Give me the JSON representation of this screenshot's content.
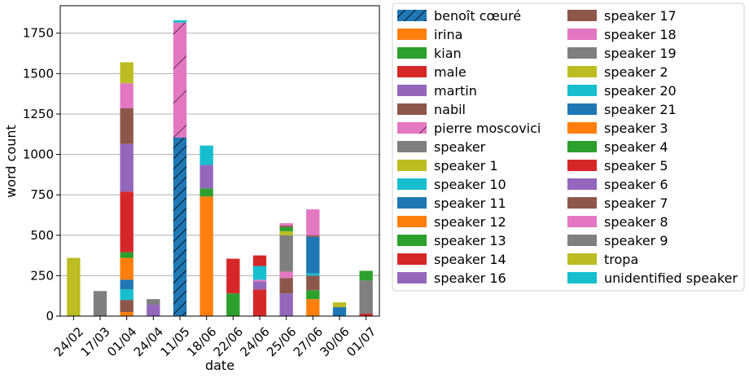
{
  "chart_data": {
    "type": "bar",
    "stacked": true,
    "xlabel": "date",
    "ylabel": "word count",
    "ylim": [
      0,
      1920
    ],
    "grid": "y",
    "legend_position": "outside-right",
    "categories": [
      "24/02",
      "17/03",
      "01/04",
      "24/04",
      "11/05",
      "18/06",
      "22/06",
      "24/06",
      "25/06",
      "27/06",
      "30/06",
      "01/07"
    ],
    "y_ticks": [
      0,
      250,
      500,
      750,
      1000,
      1250,
      1500,
      1750
    ],
    "series": [
      {
        "name": "benoît cœuré",
        "color": "#1f77b4",
        "hatch": "diag",
        "values": [
          0,
          0,
          0,
          0,
          1105,
          0,
          0,
          0,
          0,
          0,
          0,
          0
        ]
      },
      {
        "name": "irina",
        "color": "#ff7f0e",
        "values": [
          0,
          0,
          0,
          0,
          0,
          0,
          0,
          0,
          0,
          0,
          0,
          0
        ]
      },
      {
        "name": "kian",
        "color": "#2ca02c",
        "values": [
          0,
          0,
          0,
          0,
          0,
          0,
          0,
          0,
          0,
          0,
          0,
          0
        ]
      },
      {
        "name": "male",
        "color": "#d62728",
        "values": [
          0,
          0,
          0,
          0,
          0,
          0,
          0,
          0,
          0,
          0,
          0,
          0
        ]
      },
      {
        "name": "martin",
        "color": "#9467bd",
        "values": [
          0,
          0,
          0,
          0,
          0,
          0,
          0,
          0,
          0,
          0,
          0,
          0
        ]
      },
      {
        "name": "nabil",
        "color": "#8c564b",
        "values": [
          0,
          0,
          0,
          0,
          0,
          0,
          0,
          0,
          0,
          0,
          0,
          0
        ]
      },
      {
        "name": "pierre moscovici",
        "color": "#e377c2",
        "hatch": "fwd",
        "values": [
          0,
          0,
          0,
          0,
          710,
          0,
          0,
          0,
          0,
          0,
          0,
          0
        ]
      },
      {
        "name": "speaker",
        "color": "#7f7f7f",
        "values": [
          0,
          0,
          0,
          0,
          0,
          0,
          0,
          0,
          0,
          0,
          0,
          0
        ]
      },
      {
        "name": "speaker 1",
        "color": "#bcbd22",
        "values": [
          0,
          0,
          0,
          0,
          0,
          0,
          0,
          0,
          0,
          0,
          0,
          0
        ]
      },
      {
        "name": "speaker 10",
        "color": "#17becf",
        "values": [
          0,
          0,
          0,
          0,
          15,
          0,
          0,
          0,
          0,
          0,
          0,
          0
        ]
      },
      {
        "name": "speaker 11",
        "color": "#1f77b4",
        "values": [
          0,
          0,
          0,
          0,
          0,
          0,
          0,
          0,
          0,
          0,
          0,
          0
        ]
      },
      {
        "name": "speaker 12",
        "color": "#ff7f0e",
        "values": [
          0,
          0,
          25,
          0,
          0,
          740,
          0,
          0,
          0,
          105,
          0,
          0
        ]
      },
      {
        "name": "speaker 13",
        "color": "#2ca02c",
        "values": [
          0,
          0,
          0,
          0,
          0,
          50,
          140,
          0,
          0,
          55,
          0,
          0
        ]
      },
      {
        "name": "speaker 14",
        "color": "#d62728",
        "values": [
          0,
          0,
          0,
          0,
          0,
          0,
          215,
          165,
          0,
          0,
          0,
          15
        ]
      },
      {
        "name": "speaker 16",
        "color": "#9467bd",
        "values": [
          0,
          0,
          0,
          70,
          0,
          145,
          0,
          50,
          140,
          0,
          0,
          0
        ]
      },
      {
        "name": "speaker 17",
        "color": "#8c564b",
        "values": [
          0,
          0,
          75,
          0,
          0,
          0,
          0,
          0,
          95,
          90,
          0,
          0
        ]
      },
      {
        "name": "speaker 18",
        "color": "#e377c2",
        "values": [
          0,
          0,
          0,
          0,
          0,
          0,
          0,
          10,
          40,
          0,
          0,
          0
        ]
      },
      {
        "name": "speaker 19",
        "color": "#7f7f7f",
        "values": [
          0,
          155,
          0,
          35,
          0,
          0,
          0,
          0,
          225,
          0,
          0,
          205
        ]
      },
      {
        "name": "speaker 2",
        "color": "#bcbd22",
        "values": [
          0,
          0,
          0,
          0,
          0,
          0,
          0,
          0,
          25,
          0,
          0,
          0
        ]
      },
      {
        "name": "speaker 20",
        "color": "#17becf",
        "values": [
          0,
          0,
          65,
          0,
          0,
          120,
          0,
          85,
          0,
          15,
          0,
          0
        ]
      },
      {
        "name": "speaker 21",
        "color": "#1f77b4",
        "values": [
          0,
          0,
          60,
          0,
          0,
          0,
          0,
          0,
          0,
          225,
          55,
          0
        ]
      },
      {
        "name": "speaker 3",
        "color": "#ff7f0e",
        "values": [
          0,
          0,
          135,
          0,
          0,
          0,
          0,
          0,
          0,
          0,
          0,
          0
        ]
      },
      {
        "name": "speaker 4",
        "color": "#2ca02c",
        "values": [
          0,
          0,
          35,
          0,
          0,
          0,
          0,
          0,
          25,
          0,
          0,
          60
        ]
      },
      {
        "name": "speaker 5",
        "color": "#d62728",
        "values": [
          0,
          0,
          375,
          0,
          0,
          0,
          0,
          65,
          0,
          0,
          0,
          0
        ]
      },
      {
        "name": "speaker 6",
        "color": "#9467bd",
        "values": [
          0,
          0,
          295,
          0,
          0,
          0,
          0,
          0,
          0,
          0,
          0,
          0
        ]
      },
      {
        "name": "speaker 7",
        "color": "#8c564b",
        "values": [
          0,
          0,
          220,
          0,
          0,
          0,
          0,
          0,
          10,
          10,
          0,
          0
        ]
      },
      {
        "name": "speaker 8",
        "color": "#e377c2",
        "values": [
          0,
          0,
          155,
          0,
          0,
          0,
          0,
          0,
          15,
          160,
          0,
          0
        ]
      },
      {
        "name": "speaker 9",
        "color": "#7f7f7f",
        "values": [
          0,
          0,
          0,
          0,
          0,
          0,
          0,
          0,
          0,
          0,
          0,
          0
        ]
      },
      {
        "name": "tropa",
        "color": "#bcbd22",
        "values": [
          360,
          0,
          130,
          0,
          0,
          0,
          0,
          0,
          0,
          0,
          30,
          0
        ]
      },
      {
        "name": "unidentified speaker",
        "color": "#17becf",
        "values": [
          0,
          0,
          0,
          0,
          0,
          0,
          0,
          0,
          0,
          0,
          0,
          0
        ]
      }
    ]
  }
}
